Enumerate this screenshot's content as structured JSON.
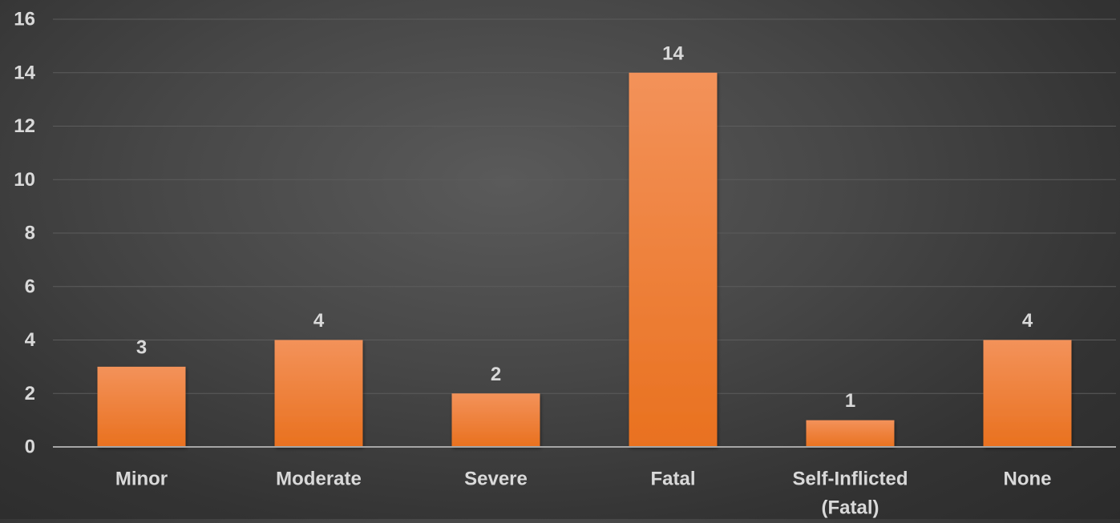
{
  "chart_data": {
    "type": "bar",
    "categories": [
      "Minor",
      "Moderate",
      "Severe",
      "Fatal",
      "Self-Inflicted (Fatal)",
      "None"
    ],
    "category_lines": [
      [
        "Minor"
      ],
      [
        "Moderate"
      ],
      [
        "Severe"
      ],
      [
        "Fatal"
      ],
      [
        "Self-Inflicted",
        "(Fatal)"
      ],
      [
        "None"
      ]
    ],
    "values": [
      3,
      4,
      2,
      14,
      1,
      4
    ],
    "data_labels": [
      "3",
      "4",
      "2",
      "14",
      "1",
      "4"
    ],
    "ylim": [
      0,
      16
    ],
    "yticks": [
      0,
      2,
      4,
      6,
      8,
      10,
      12,
      14,
      16
    ],
    "title": "",
    "xlabel": "",
    "ylabel": "",
    "grid": true,
    "colors": {
      "bar_top": "#f3925a",
      "bar_bottom": "#e9711f",
      "text": "#d9d9d9",
      "gridline": "#5c5c5c",
      "axis": "#a6a6a6"
    }
  }
}
